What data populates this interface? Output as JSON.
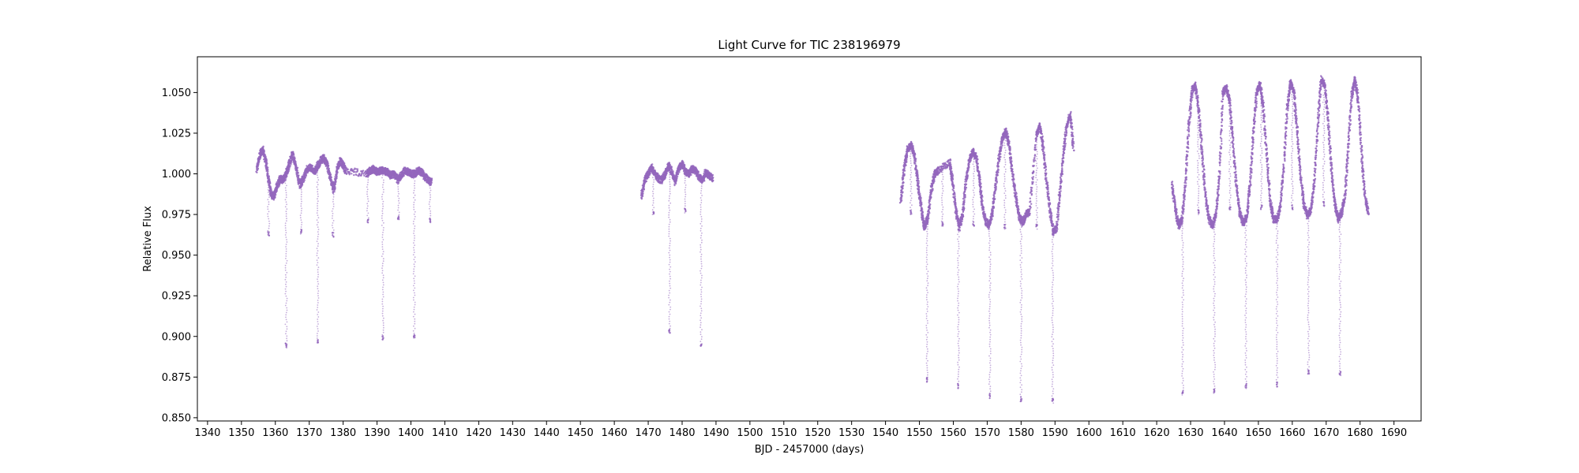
{
  "chart_data": {
    "type": "scatter",
    "title": "Light Curve for TIC 238196979",
    "xlabel": "BJD - 2457000 (days)",
    "ylabel": "Relative Flux",
    "xlim": [
      1337,
      1698
    ],
    "ylim": [
      0.848,
      1.072
    ],
    "xticks": [
      1340,
      1350,
      1360,
      1370,
      1380,
      1390,
      1400,
      1410,
      1420,
      1430,
      1440,
      1450,
      1460,
      1470,
      1480,
      1490,
      1500,
      1510,
      1520,
      1530,
      1540,
      1550,
      1560,
      1570,
      1580,
      1590,
      1600,
      1610,
      1620,
      1630,
      1640,
      1650,
      1660,
      1670,
      1680,
      1690
    ],
    "yticks": [
      0.85,
      0.875,
      0.9,
      0.925,
      0.95,
      0.975,
      1.0,
      1.025,
      1.05
    ],
    "ytick_labels": [
      "0.850",
      "0.875",
      "0.900",
      "0.925",
      "0.950",
      "0.975",
      "1.000",
      "1.025",
      "1.050"
    ],
    "grid": false,
    "color": "#9467bd",
    "series": [
      {
        "segment": 1,
        "x": [
          1354.5,
          1355.5,
          1356.3,
          1357.2,
          1358.0,
          1358.8,
          1359.6,
          1360.5,
          1361.5,
          1362.3,
          1363.2,
          1364.0,
          1365.0,
          1366.0,
          1367.2,
          1368.3,
          1369.4,
          1370.5,
          1371.5,
          1372.5,
          1373.4,
          1374.3,
          1375.2,
          1376.2,
          1377.2,
          1378.1,
          1379.0,
          1379.9,
          1380.7,
          1387.0,
          1388.0,
          1389.0,
          1390.0,
          1391.0,
          1392.0,
          1393.0,
          1394.0,
          1395.0,
          1396.2,
          1397.2,
          1398.2,
          1399.2,
          1400.2,
          1401.2,
          1402.2,
          1403.2,
          1404.2,
          1405.2,
          1406.0
        ],
        "y": [
          1.003,
          1.012,
          1.015,
          1.008,
          0.996,
          0.987,
          0.986,
          0.992,
          0.997,
          0.996,
          1.0,
          1.005,
          1.012,
          1.005,
          0.993,
          0.997,
          1.003,
          1.004,
          1.001,
          1.005,
          1.008,
          1.01,
          1.006,
          0.998,
          0.99,
          1.001,
          1.008,
          1.006,
          1.002,
          1.0,
          1.002,
          1.003,
          1.001,
          1.002,
          1.002,
          1.001,
          0.999,
          1.0,
          0.996,
          0.999,
          1.002,
          1.001,
          1.0,
          1.0,
          1.002,
          1.001,
          0.998,
          0.996,
          0.995
        ]
      },
      {
        "segment": 2,
        "x": [
          1468.0,
          1469.0,
          1470.0,
          1471.0,
          1472.0,
          1473.0,
          1474.0,
          1475.0,
          1476.0,
          1477.0,
          1478.0,
          1479.0,
          1480.0,
          1481.0,
          1482.0,
          1483.0,
          1484.0,
          1485.0,
          1486.0,
          1487.0,
          1488.0,
          1489.0
        ],
        "y": [
          0.986,
          0.996,
          1.0,
          1.004,
          1.0,
          0.997,
          0.996,
          1.0,
          1.005,
          1.001,
          0.995,
          1.003,
          1.006,
          1.001,
          1.0,
          1.003,
          1.002,
          0.998,
          0.996,
          1.001,
          0.999,
          0.997
        ]
      },
      {
        "segment": 3,
        "x": [
          1544.5,
          1545.5,
          1546.5,
          1547.5,
          1548.5,
          1549.5,
          1550.5,
          1551.5,
          1552.5,
          1553.5,
          1554.5,
          1555.5,
          1559.0,
          1559.8,
          1560.8,
          1561.8,
          1562.8,
          1563.8,
          1564.8,
          1565.8,
          1566.8,
          1567.8,
          1568.5,
          1569.5,
          1570.5,
          1571.5,
          1572.5,
          1573.5,
          1574.5,
          1575.5,
          1576.5,
          1577.5,
          1578.5,
          1579.5,
          1580.5,
          1581.5,
          1582.5,
          1584.5,
          1585.5,
          1586.5,
          1587.5,
          1588.5,
          1589.5,
          1590.5,
          1591.5,
          1592.5,
          1593.5,
          1594.5,
          1595.5
        ],
        "y": [
          0.983,
          1.003,
          1.015,
          1.018,
          1.012,
          0.995,
          0.98,
          0.967,
          0.973,
          0.99,
          1.0,
          1.002,
          1.007,
          0.995,
          0.977,
          0.967,
          0.976,
          0.996,
          1.009,
          1.014,
          1.01,
          0.995,
          0.982,
          0.971,
          0.968,
          0.976,
          0.992,
          1.01,
          1.022,
          1.026,
          1.017,
          1.0,
          0.985,
          0.973,
          0.97,
          0.975,
          0.977,
          1.023,
          1.03,
          1.016,
          0.996,
          0.978,
          0.964,
          0.967,
          0.99,
          1.013,
          1.03,
          1.036,
          1.015
        ]
      },
      {
        "segment": 4,
        "x": [
          1624.5,
          1625.5,
          1626.5,
          1627.5,
          1628.5,
          1629.5,
          1630.5,
          1631.5,
          1632.5,
          1633.5,
          1634.5,
          1635.5,
          1636.5,
          1637.5,
          1638.5,
          1639.5,
          1640.5,
          1641.5,
          1642.5,
          1643.5,
          1644.5,
          1645.5,
          1646.5,
          1647.5,
          1648.5,
          1649.5,
          1650.5,
          1651.5,
          1652.5,
          1653.5,
          1654.5,
          1655.5,
          1656.5,
          1657.5,
          1658.5,
          1659.5,
          1660.5,
          1661.5,
          1662.5,
          1663.5,
          1664.5,
          1665.5,
          1666.5,
          1667.5,
          1668.5,
          1669.5,
          1670.5,
          1671.5,
          1672.5,
          1673.5,
          1674.5,
          1675.5,
          1676.5,
          1677.5,
          1678.5,
          1679.5,
          1680.5,
          1681.5,
          1682.5
        ],
        "y": [
          0.993,
          0.978,
          0.968,
          0.972,
          0.995,
          1.03,
          1.052,
          1.054,
          1.038,
          1.01,
          0.985,
          0.972,
          0.968,
          0.975,
          0.998,
          1.05,
          1.053,
          1.045,
          1.02,
          0.993,
          0.976,
          0.97,
          0.973,
          0.992,
          1.025,
          1.05,
          1.055,
          1.04,
          1.01,
          0.983,
          0.972,
          0.972,
          0.98,
          1.005,
          1.04,
          1.056,
          1.05,
          1.025,
          0.997,
          0.98,
          0.974,
          0.978,
          0.995,
          1.03,
          1.058,
          1.055,
          1.035,
          1.005,
          0.983,
          0.972,
          0.976,
          0.985,
          1.015,
          1.048,
          1.058,
          1.045,
          1.01,
          0.985,
          0.976
        ]
      }
    ],
    "eclipses": [
      {
        "x": 1358.0,
        "y": 0.962
      },
      {
        "x": 1363.2,
        "y": 0.893
      },
      {
        "x": 1367.6,
        "y": 0.963
      },
      {
        "x": 1372.5,
        "y": 0.896
      },
      {
        "x": 1377.0,
        "y": 0.961
      },
      {
        "x": 1387.3,
        "y": 0.97
      },
      {
        "x": 1391.7,
        "y": 0.898
      },
      {
        "x": 1396.3,
        "y": 0.972
      },
      {
        "x": 1401.0,
        "y": 0.899
      },
      {
        "x": 1405.6,
        "y": 0.97
      },
      {
        "x": 1471.5,
        "y": 0.975
      },
      {
        "x": 1476.3,
        "y": 0.902
      },
      {
        "x": 1480.9,
        "y": 0.976
      },
      {
        "x": 1485.6,
        "y": 0.894
      },
      {
        "x": 1547.5,
        "y": 0.975
      },
      {
        "x": 1552.3,
        "y": 0.872
      },
      {
        "x": 1556.8,
        "y": 0.968
      },
      {
        "x": 1561.5,
        "y": 0.868
      },
      {
        "x": 1566.0,
        "y": 0.968
      },
      {
        "x": 1570.8,
        "y": 0.862
      },
      {
        "x": 1575.2,
        "y": 0.966
      },
      {
        "x": 1580.0,
        "y": 0.86
      },
      {
        "x": 1584.6,
        "y": 0.966
      },
      {
        "x": 1589.3,
        "y": 0.859
      },
      {
        "x": 1627.7,
        "y": 0.864
      },
      {
        "x": 1632.3,
        "y": 0.975
      },
      {
        "x": 1637.0,
        "y": 0.865
      },
      {
        "x": 1641.6,
        "y": 0.978
      },
      {
        "x": 1646.3,
        "y": 0.868
      },
      {
        "x": 1650.9,
        "y": 0.978
      },
      {
        "x": 1655.5,
        "y": 0.869
      },
      {
        "x": 1660.0,
        "y": 0.978
      },
      {
        "x": 1664.8,
        "y": 0.877
      },
      {
        "x": 1669.3,
        "y": 0.98
      },
      {
        "x": 1674.1,
        "y": 0.876
      }
    ]
  }
}
